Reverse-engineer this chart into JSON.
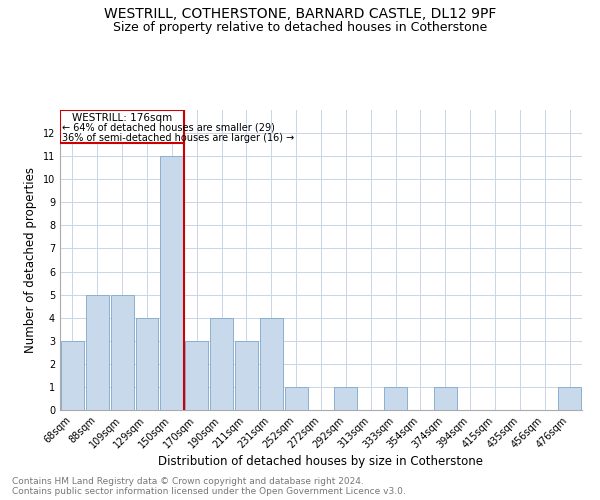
{
  "title": "WESTRILL, COTHERSTONE, BARNARD CASTLE, DL12 9PF",
  "subtitle": "Size of property relative to detached houses in Cotherstone",
  "xlabel": "Distribution of detached houses by size in Cotherstone",
  "ylabel": "Number of detached properties",
  "footnote1": "Contains HM Land Registry data © Crown copyright and database right 2024.",
  "footnote2": "Contains public sector information licensed under the Open Government Licence v3.0.",
  "categories": [
    "68sqm",
    "88sqm",
    "109sqm",
    "129sqm",
    "150sqm",
    "170sqm",
    "190sqm",
    "211sqm",
    "231sqm",
    "252sqm",
    "272sqm",
    "292sqm",
    "313sqm",
    "333sqm",
    "354sqm",
    "374sqm",
    "394sqm",
    "415sqm",
    "435sqm",
    "456sqm",
    "476sqm"
  ],
  "values": [
    3,
    5,
    5,
    4,
    11,
    3,
    4,
    3,
    4,
    1,
    0,
    1,
    0,
    1,
    0,
    1,
    0,
    0,
    0,
    0,
    1
  ],
  "bar_color": "#c9d9ec",
  "bar_edgecolor": "#8ab0d0",
  "red_line_after_bar": 4,
  "property_line_label": "WESTRILL: 176sqm",
  "annotation_line1": "← 64% of detached houses are smaller (29)",
  "annotation_line2": "36% of semi-detached houses are larger (16) →",
  "red_color": "#cc0000",
  "ylim": [
    0,
    13
  ],
  "yticks": [
    0,
    1,
    2,
    3,
    4,
    5,
    6,
    7,
    8,
    9,
    10,
    11,
    12
  ],
  "background_color": "#ffffff",
  "grid_color": "#c8d4e8",
  "title_fontsize": 10,
  "subtitle_fontsize": 9,
  "axis_label_fontsize": 8.5,
  "tick_fontsize": 7,
  "footnote_fontsize": 6.5
}
